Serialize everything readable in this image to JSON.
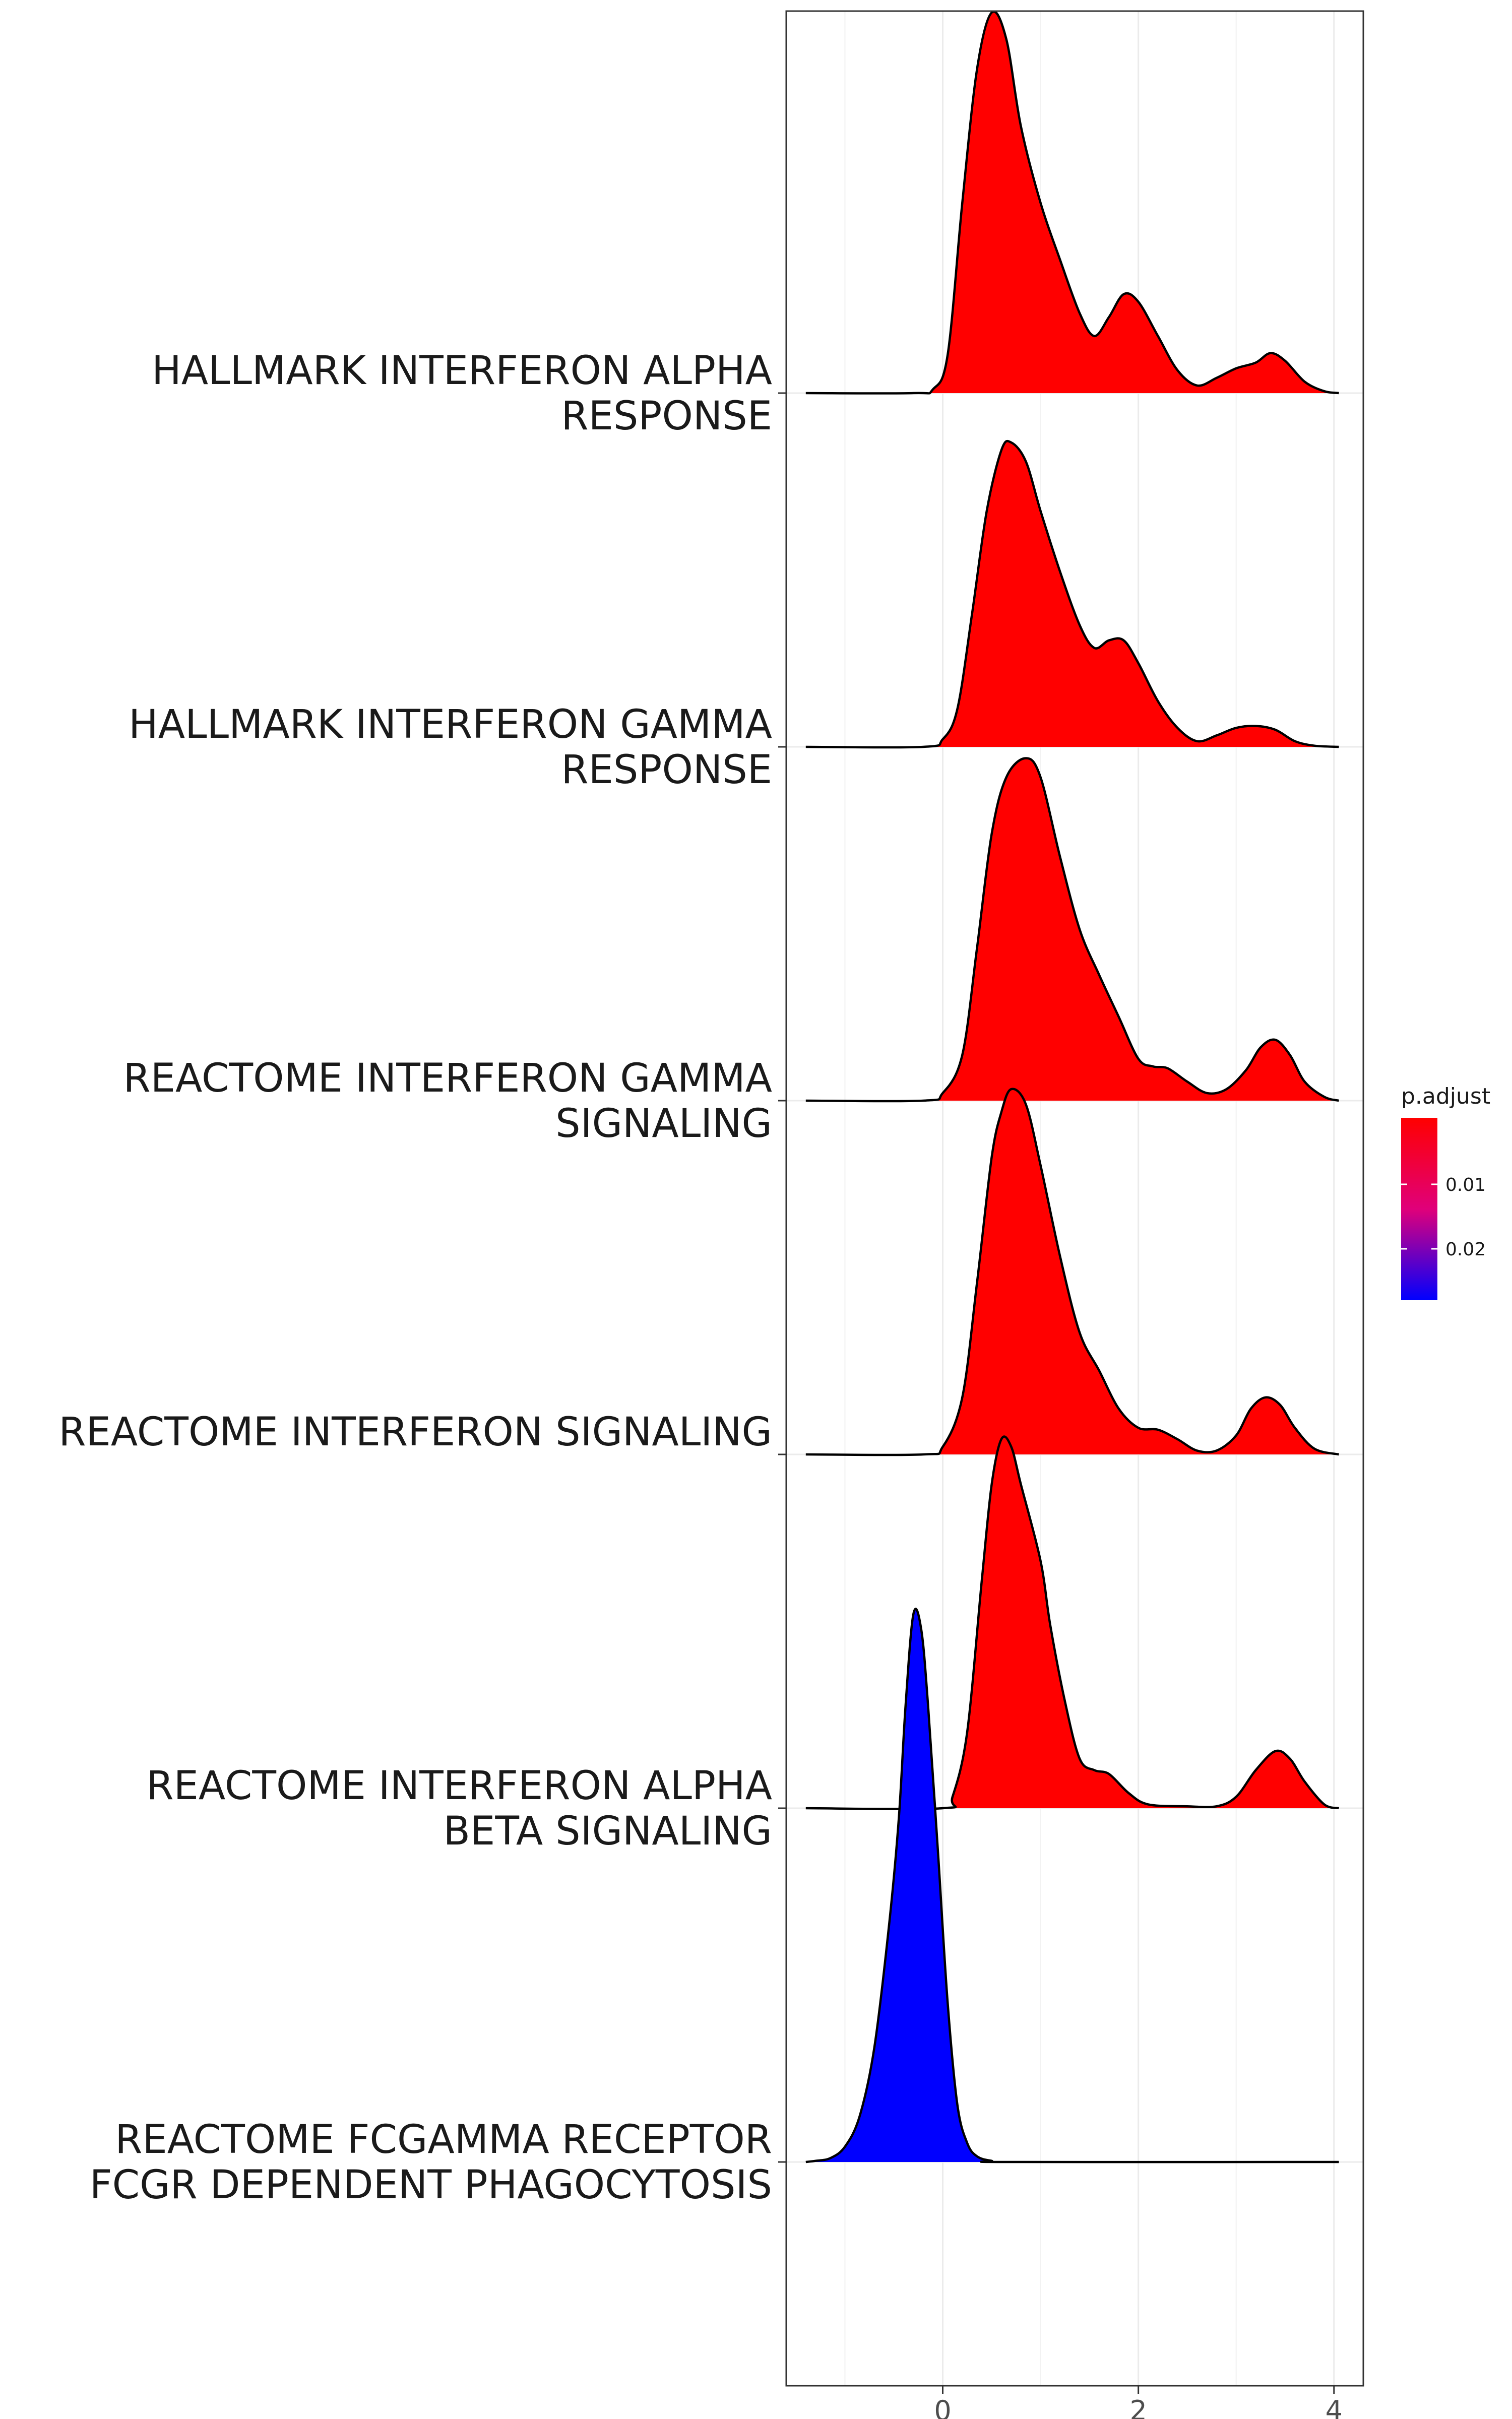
{
  "chart_data": {
    "type": "ridgeline",
    "x_range": [
      -1.6,
      4.3
    ],
    "x_ticks": [
      0,
      2,
      4
    ],
    "x_tick_labels": [
      "0",
      "2",
      "4"
    ],
    "xlabel": "",
    "ylabel": "",
    "grid": true,
    "legend": {
      "title": "p.adjust",
      "position": "right",
      "color_low": "#0000FF",
      "color_high": "#FF0000",
      "tick_labels": [
        "0.01",
        "0.02"
      ]
    },
    "series": [
      {
        "label_lines": [
          "HALLMARK INTERFERON ALPHA",
          "RESPONSE"
        ],
        "color": "#FF0000",
        "density": [
          [
            -1.4,
            0
          ],
          [
            -0.3,
            0
          ],
          [
            -0.1,
            0.01
          ],
          [
            0.05,
            0.1
          ],
          [
            0.2,
            0.5
          ],
          [
            0.35,
            0.85
          ],
          [
            0.5,
            1.0
          ],
          [
            0.65,
            0.93
          ],
          [
            0.8,
            0.7
          ],
          [
            1.0,
            0.5
          ],
          [
            1.2,
            0.35
          ],
          [
            1.4,
            0.21
          ],
          [
            1.55,
            0.15
          ],
          [
            1.7,
            0.2
          ],
          [
            1.85,
            0.26
          ],
          [
            2.0,
            0.24
          ],
          [
            2.2,
            0.15
          ],
          [
            2.4,
            0.06
          ],
          [
            2.6,
            0.02
          ],
          [
            2.8,
            0.04
          ],
          [
            3.0,
            0.065
          ],
          [
            3.2,
            0.08
          ],
          [
            3.35,
            0.105
          ],
          [
            3.5,
            0.085
          ],
          [
            3.7,
            0.03
          ],
          [
            3.9,
            0.005
          ],
          [
            4.05,
            0
          ]
        ]
      },
      {
        "label_lines": [
          "HALLMARK INTERFERON GAMMA",
          "RESPONSE"
        ],
        "color": "#FF0000",
        "density": [
          [
            -1.4,
            0
          ],
          [
            -0.2,
            0
          ],
          [
            0.0,
            0.02
          ],
          [
            0.15,
            0.1
          ],
          [
            0.3,
            0.35
          ],
          [
            0.45,
            0.62
          ],
          [
            0.6,
            0.78
          ],
          [
            0.7,
            0.8
          ],
          [
            0.85,
            0.75
          ],
          [
            1.0,
            0.62
          ],
          [
            1.2,
            0.46
          ],
          [
            1.4,
            0.32
          ],
          [
            1.55,
            0.26
          ],
          [
            1.7,
            0.28
          ],
          [
            1.85,
            0.28
          ],
          [
            2.0,
            0.22
          ],
          [
            2.2,
            0.12
          ],
          [
            2.4,
            0.05
          ],
          [
            2.6,
            0.015
          ],
          [
            2.8,
            0.03
          ],
          [
            3.0,
            0.05
          ],
          [
            3.2,
            0.055
          ],
          [
            3.4,
            0.045
          ],
          [
            3.6,
            0.015
          ],
          [
            3.8,
            0.003
          ],
          [
            4.05,
            0
          ]
        ]
      },
      {
        "label_lines": [
          "REACTOME INTERFERON GAMMA",
          "SIGNALING"
        ],
        "color": "#FF0000",
        "density": [
          [
            -1.4,
            0
          ],
          [
            -0.2,
            0
          ],
          [
            0.0,
            0.02
          ],
          [
            0.2,
            0.12
          ],
          [
            0.35,
            0.4
          ],
          [
            0.5,
            0.7
          ],
          [
            0.65,
            0.85
          ],
          [
            0.85,
            0.9
          ],
          [
            1.0,
            0.85
          ],
          [
            1.2,
            0.64
          ],
          [
            1.4,
            0.45
          ],
          [
            1.6,
            0.33
          ],
          [
            1.8,
            0.22
          ],
          [
            2.0,
            0.11
          ],
          [
            2.15,
            0.09
          ],
          [
            2.3,
            0.085
          ],
          [
            2.5,
            0.05
          ],
          [
            2.7,
            0.02
          ],
          [
            2.9,
            0.03
          ],
          [
            3.1,
            0.08
          ],
          [
            3.25,
            0.14
          ],
          [
            3.4,
            0.16
          ],
          [
            3.55,
            0.12
          ],
          [
            3.7,
            0.05
          ],
          [
            3.9,
            0.01
          ],
          [
            4.05,
            0
          ]
        ]
      },
      {
        "label_lines": [
          "REACTOME INTERFERON SIGNALING"
        ],
        "color": "#FF0000",
        "density": [
          [
            -1.4,
            0
          ],
          [
            -0.2,
            0
          ],
          [
            0.0,
            0.02
          ],
          [
            0.2,
            0.15
          ],
          [
            0.35,
            0.45
          ],
          [
            0.5,
            0.78
          ],
          [
            0.6,
            0.9
          ],
          [
            0.7,
            0.96
          ],
          [
            0.85,
            0.92
          ],
          [
            1.0,
            0.76
          ],
          [
            1.2,
            0.52
          ],
          [
            1.4,
            0.32
          ],
          [
            1.6,
            0.22
          ],
          [
            1.8,
            0.12
          ],
          [
            2.0,
            0.07
          ],
          [
            2.2,
            0.065
          ],
          [
            2.4,
            0.04
          ],
          [
            2.6,
            0.01
          ],
          [
            2.8,
            0.01
          ],
          [
            3.0,
            0.05
          ],
          [
            3.15,
            0.12
          ],
          [
            3.3,
            0.15
          ],
          [
            3.45,
            0.13
          ],
          [
            3.6,
            0.07
          ],
          [
            3.8,
            0.015
          ],
          [
            4.05,
            0
          ]
        ]
      },
      {
        "label_lines": [
          "REACTOME INTERFERON ALPHA",
          "BETA SIGNALING"
        ],
        "color": "#FF0000",
        "density": [
          [
            -1.4,
            0
          ],
          [
            0.0,
            0
          ],
          [
            0.1,
            0.03
          ],
          [
            0.25,
            0.2
          ],
          [
            0.4,
            0.6
          ],
          [
            0.5,
            0.85
          ],
          [
            0.6,
            0.97
          ],
          [
            0.7,
            0.95
          ],
          [
            0.8,
            0.85
          ],
          [
            1.0,
            0.65
          ],
          [
            1.1,
            0.48
          ],
          [
            1.25,
            0.28
          ],
          [
            1.4,
            0.13
          ],
          [
            1.55,
            0.1
          ],
          [
            1.7,
            0.09
          ],
          [
            1.9,
            0.04
          ],
          [
            2.1,
            0.01
          ],
          [
            2.5,
            0.005
          ],
          [
            2.8,
            0.005
          ],
          [
            3.0,
            0.03
          ],
          [
            3.2,
            0.1
          ],
          [
            3.4,
            0.15
          ],
          [
            3.55,
            0.13
          ],
          [
            3.7,
            0.07
          ],
          [
            3.9,
            0.01
          ],
          [
            4.05,
            0
          ]
        ]
      },
      {
        "label_lines": [
          "REACTOME FCGAMMA RECEPTOR",
          "FCGR DEPENDENT PHAGOCYTOSIS"
        ],
        "color": "#0000FF",
        "density": [
          [
            -1.4,
            0
          ],
          [
            -1.3,
            0.003
          ],
          [
            -1.15,
            0.01
          ],
          [
            -1.0,
            0.04
          ],
          [
            -0.85,
            0.12
          ],
          [
            -0.7,
            0.3
          ],
          [
            -0.55,
            0.62
          ],
          [
            -0.45,
            0.9
          ],
          [
            -0.38,
            1.2
          ],
          [
            -0.3,
            1.44
          ],
          [
            -0.22,
            1.4
          ],
          [
            -0.15,
            1.2
          ],
          [
            -0.05,
            0.82
          ],
          [
            0.05,
            0.42
          ],
          [
            0.15,
            0.15
          ],
          [
            0.25,
            0.05
          ],
          [
            0.35,
            0.015
          ],
          [
            0.5,
            0.003
          ],
          [
            0.7,
            0
          ],
          [
            4.05,
            0
          ]
        ]
      }
    ]
  }
}
